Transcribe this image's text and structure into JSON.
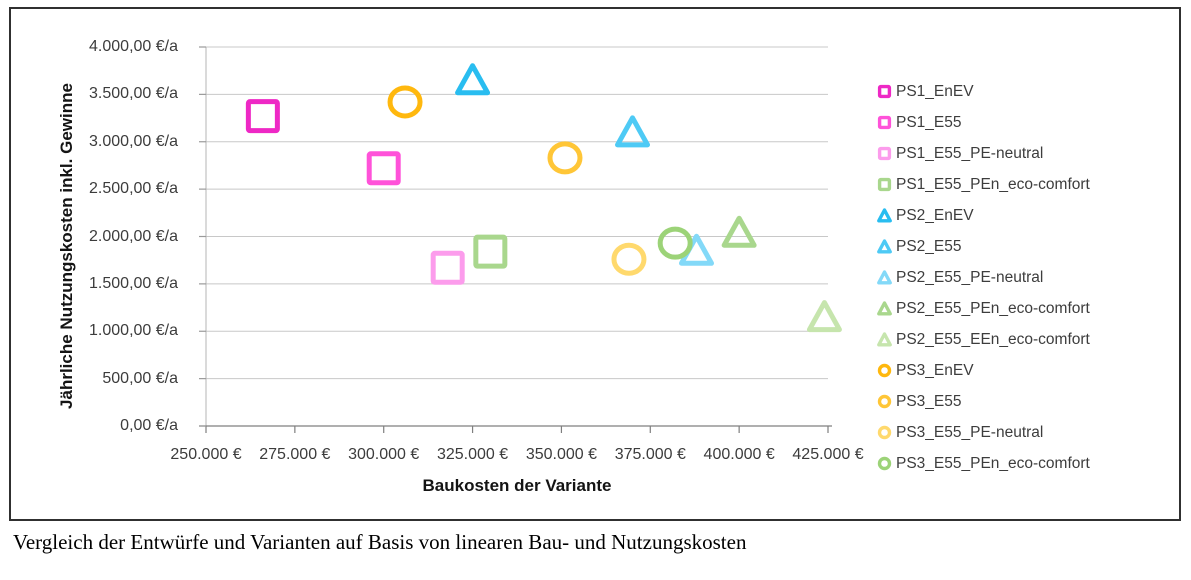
{
  "figure": {
    "caption": "Vergleich der Entwürfe und Varianten auf Basis von linearen Bau- und Nutzungskosten"
  },
  "chart_data": {
    "type": "scatter",
    "title": "",
    "xlabel": "Baukosten der Variante",
    "ylabel": "Jährliche Nutzungskosten inkl. Gewinne",
    "xlim": [
      250000,
      425000
    ],
    "ylim": [
      0,
      4000
    ],
    "grid": true,
    "legend_position": "right",
    "x_ticks": [
      250000,
      275000,
      300000,
      325000,
      350000,
      375000,
      400000,
      425000
    ],
    "x_tick_labels": [
      "250.000 €",
      "275.000 €",
      "300.000 €",
      "325.000 €",
      "350.000 €",
      "375.000 €",
      "400.000 €",
      "425.000 €"
    ],
    "y_ticks": [
      0,
      500,
      1000,
      1500,
      2000,
      2500,
      3000,
      3500,
      4000
    ],
    "y_tick_labels": [
      "0,00 €/a",
      "500,00 €/a",
      "1.000,00 €/a",
      "1.500,00 €/a",
      "2.000,00 €/a",
      "2.500,00 €/a",
      "3.000,00 €/a",
      "3.500,00 €/a",
      "4.000,00 €/a"
    ],
    "series": [
      {
        "name": "PS1_EnEV",
        "marker": "square",
        "color": "#ee28c5",
        "x": 266000,
        "y": 3270
      },
      {
        "name": "PS1_E55",
        "marker": "square",
        "color": "#ff52d9",
        "x": 300000,
        "y": 2720
      },
      {
        "name": "PS1_E55_PE-neutral",
        "marker": "square",
        "color": "#fc9cec",
        "x": 318000,
        "y": 1670
      },
      {
        "name": "PS1_E55_PEn_eco-comfort",
        "marker": "square",
        "color": "#a9d78d",
        "x": 330000,
        "y": 1840
      },
      {
        "name": "PS2_EnEV",
        "marker": "triangle",
        "color": "#29bdf0",
        "x": 325000,
        "y": 3660
      },
      {
        "name": "PS2_E55",
        "marker": "triangle",
        "color": "#4ecaf5",
        "x": 370000,
        "y": 3110
      },
      {
        "name": "PS2_E55_PE-neutral",
        "marker": "triangle",
        "color": "#83d9f8",
        "x": 388000,
        "y": 1860
      },
      {
        "name": "PS2_E55_PEn_eco-comfort",
        "marker": "triangle",
        "color": "#a9d78d",
        "x": 400000,
        "y": 2050
      },
      {
        "name": "PS2_E55_EEn_eco-comfort",
        "marker": "triangle",
        "color": "#c6e5ad",
        "x": 424000,
        "y": 1160
      },
      {
        "name": "PS3_EnEV",
        "marker": "circle",
        "color": "#ffb80e",
        "x": 306000,
        "y": 3420
      },
      {
        "name": "PS3_E55",
        "marker": "circle",
        "color": "#ffc637",
        "x": 351000,
        "y": 2830
      },
      {
        "name": "PS3_E55_PE-neutral",
        "marker": "circle",
        "color": "#ffd96d",
        "x": 369000,
        "y": 1760
      },
      {
        "name": "PS3_E55_PEn_eco-comfort",
        "marker": "circle",
        "color": "#9cd378",
        "x": 382000,
        "y": 1930
      }
    ]
  }
}
